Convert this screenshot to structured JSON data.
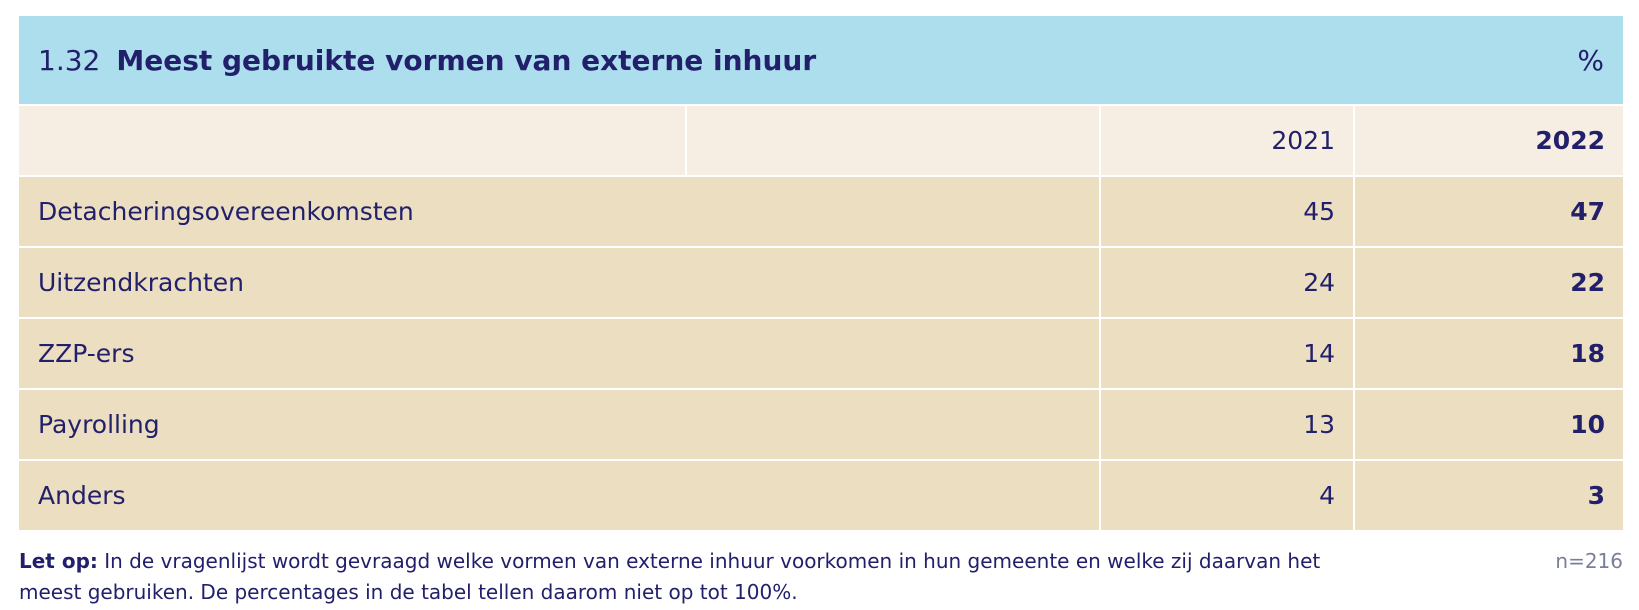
{
  "table": {
    "number": "1.32",
    "title": "Meest gebruikte vormen van externe inhuur",
    "unit": "%",
    "columns": [
      "2021",
      "2022"
    ],
    "rows": [
      {
        "label": "Detacheringsovereenkomsten",
        "y2021": "45",
        "y2022": "47"
      },
      {
        "label": "Uitzendkrachten",
        "y2021": "24",
        "y2022": "22"
      },
      {
        "label": "ZZP-ers",
        "y2021": "14",
        "y2022": "18"
      },
      {
        "label": "Payrolling",
        "y2021": "13",
        "y2022": "10"
      },
      {
        "label": "Anders",
        "y2021": "4",
        "y2022": "3"
      }
    ]
  },
  "footnote": {
    "label": "Let op:",
    "text": "In de vragenlijst wordt gevraagd welke vormen van externe inhuur voorkomen in hun gemeente en welke zij daarvan het meest gebruiken. De percentages in de tabel tellen daarom niet op tot 100%.",
    "n": "n=216"
  },
  "colors": {
    "title_bg": "#acdeee",
    "header_bg": "#f6eee2",
    "row_bg": "#ecdec1",
    "text": "#22206b"
  }
}
